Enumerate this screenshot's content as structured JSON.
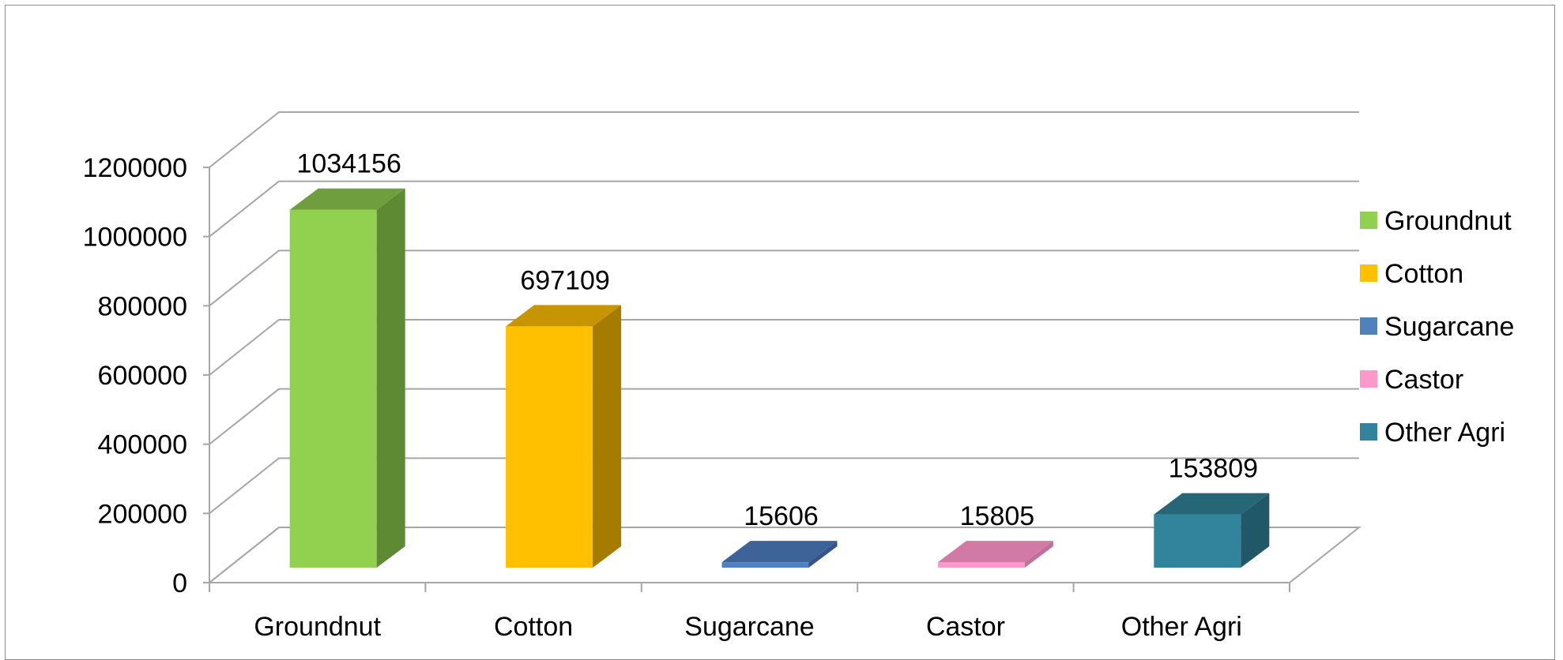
{
  "chart_data": {
    "type": "bar",
    "style": "3d-column",
    "title": "",
    "xlabel": "",
    "ylabel": "",
    "categories": [
      "Groundnut",
      "Cotton",
      "Sugarcane",
      "Castor",
      "Other Agri"
    ],
    "values": [
      1034156,
      697109,
      15606,
      15805,
      153809
    ],
    "data_labels": [
      "1034156",
      "697109",
      "15606",
      "15805",
      "153809"
    ],
    "ylim": [
      0,
      1200000
    ],
    "yticks": [
      0,
      200000,
      400000,
      600000,
      800000,
      1000000,
      1200000
    ],
    "ytick_labels": [
      "0",
      "200000",
      "400000",
      "600000",
      "800000",
      "1000000",
      "1200000"
    ],
    "grid": true,
    "legend": {
      "placement": "right",
      "entries": [
        "Groundnut",
        "Cotton",
        "Sugarcane",
        "Castor",
        "Other Agri"
      ]
    },
    "colors": {
      "front": [
        "#92d050",
        "#ffc000",
        "#4f81bd",
        "#ff99cc",
        "#31849b"
      ],
      "side": [
        "#5e8a34",
        "#a67c00",
        "#34558a",
        "#c0709a",
        "#205867"
      ],
      "top": [
        "#6e9e3e",
        "#c79500",
        "#3d6399",
        "#d17aa5",
        "#266676"
      ],
      "grid": "#a6a6a6"
    }
  }
}
